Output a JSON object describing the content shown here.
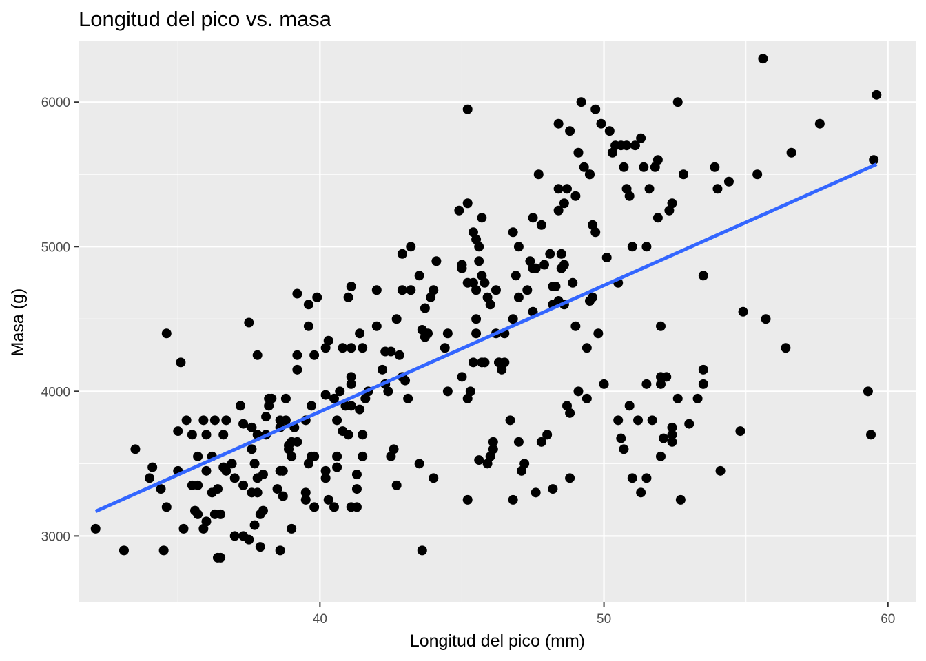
{
  "chart_data": {
    "type": "scatter",
    "title": "Longitud del pico vs. masa",
    "xlabel": "Longitud del pico (mm)",
    "ylabel": "Masa (g)",
    "xlim": [
      31.5,
      61.0
    ],
    "ylim": [
      2540,
      6420
    ],
    "x_ticks": [
      40,
      50,
      60
    ],
    "x_tick_labels": [
      "40",
      "50",
      "60"
    ],
    "x_minor": [
      35,
      45,
      55
    ],
    "y_ticks": [
      3000,
      4000,
      5000,
      6000
    ],
    "y_tick_labels": [
      "3000",
      "4000",
      "5000",
      "6000"
    ],
    "y_minor": [
      3500,
      4500,
      5500
    ],
    "grid": true,
    "legend": "none",
    "point_color": "#000000",
    "fit_color": "#3366ff",
    "panel_color": "#ebebeb",
    "fit_line": {
      "method": "lm",
      "x": [
        32.1,
        59.6
      ],
      "y": [
        3170,
        5570
      ]
    },
    "points": [
      [
        32.1,
        3050
      ],
      [
        33.1,
        2900
      ],
      [
        33.5,
        3600
      ],
      [
        34.0,
        3400
      ],
      [
        34.1,
        3475
      ],
      [
        34.4,
        3325
      ],
      [
        34.5,
        2900
      ],
      [
        34.6,
        3200
      ],
      [
        34.6,
        4400
      ],
      [
        35.0,
        3450
      ],
      [
        35.0,
        3725
      ],
      [
        35.1,
        4200
      ],
      [
        35.2,
        3050
      ],
      [
        35.3,
        3800
      ],
      [
        35.5,
        3700
      ],
      [
        35.5,
        3350
      ],
      [
        35.6,
        3175
      ],
      [
        35.7,
        3550
      ],
      [
        35.7,
        3150
      ],
      [
        35.7,
        3350
      ],
      [
        35.9,
        3050
      ],
      [
        35.9,
        3800
      ],
      [
        36.0,
        3100
      ],
      [
        36.0,
        3700
      ],
      [
        36.0,
        3450
      ],
      [
        36.2,
        3550
      ],
      [
        36.2,
        3300
      ],
      [
        36.3,
        3800
      ],
      [
        36.3,
        3150
      ],
      [
        36.4,
        2850
      ],
      [
        36.4,
        3325
      ],
      [
        36.5,
        2850
      ],
      [
        36.5,
        3150
      ],
      [
        36.6,
        3700
      ],
      [
        36.6,
        3475
      ],
      [
        36.7,
        3800
      ],
      [
        36.7,
        3450
      ],
      [
        36.9,
        3500
      ],
      [
        37.0,
        3000
      ],
      [
        37.0,
        3400
      ],
      [
        37.2,
        3900
      ],
      [
        37.3,
        3775
      ],
      [
        37.3,
        3350
      ],
      [
        37.3,
        3000
      ],
      [
        37.5,
        2975
      ],
      [
        37.5,
        4475
      ],
      [
        37.6,
        3300
      ],
      [
        37.6,
        3600
      ],
      [
        37.6,
        3750
      ],
      [
        37.7,
        3075
      ],
      [
        37.7,
        3500
      ],
      [
        37.8,
        3700
      ],
      [
        37.8,
        3300
      ],
      [
        37.8,
        4250
      ],
      [
        37.8,
        3400
      ],
      [
        37.9,
        3150
      ],
      [
        37.9,
        2925
      ],
      [
        38.0,
        3175
      ],
      [
        38.0,
        3425
      ],
      [
        38.1,
        3825
      ],
      [
        38.1,
        3700
      ],
      [
        38.2,
        3950
      ],
      [
        38.2,
        3900
      ],
      [
        38.3,
        3950
      ],
      [
        38.5,
        3325
      ],
      [
        38.6,
        3450
      ],
      [
        38.6,
        3750
      ],
      [
        38.6,
        3800
      ],
      [
        38.6,
        2900
      ],
      [
        38.7,
        3450
      ],
      [
        38.7,
        3275
      ],
      [
        38.8,
        3800
      ],
      [
        38.8,
        3950
      ],
      [
        38.9,
        3625
      ],
      [
        38.9,
        3600
      ],
      [
        39.0,
        3050
      ],
      [
        39.0,
        3550
      ],
      [
        39.0,
        3650
      ],
      [
        39.1,
        3750
      ],
      [
        39.2,
        4675
      ],
      [
        39.2,
        3650
      ],
      [
        39.2,
        4250
      ],
      [
        39.2,
        4150
      ],
      [
        39.5,
        3800
      ],
      [
        39.5,
        3300
      ],
      [
        39.5,
        3250
      ],
      [
        39.6,
        3500
      ],
      [
        39.6,
        4600
      ],
      [
        39.6,
        4450
      ],
      [
        39.7,
        3900
      ],
      [
        39.7,
        3550
      ],
      [
        39.8,
        4250
      ],
      [
        39.8,
        3550
      ],
      [
        39.8,
        3200
      ],
      [
        39.9,
        4650
      ],
      [
        40.2,
        4300
      ],
      [
        40.2,
        3975
      ],
      [
        40.2,
        3450
      ],
      [
        40.2,
        3400
      ],
      [
        40.3,
        3250
      ],
      [
        40.3,
        4350
      ],
      [
        40.5,
        3950
      ],
      [
        40.5,
        3200
      ],
      [
        40.6,
        3550
      ],
      [
        40.6,
        3475
      ],
      [
        40.6,
        3800
      ],
      [
        40.7,
        4000
      ],
      [
        40.8,
        3725
      ],
      [
        40.8,
        4300
      ],
      [
        40.9,
        3900
      ],
      [
        41.0,
        4650
      ],
      [
        41.0,
        3700
      ],
      [
        41.1,
        3200
      ],
      [
        41.1,
        4725
      ],
      [
        41.1,
        4300
      ],
      [
        41.1,
        3900
      ],
      [
        41.3,
        3425
      ],
      [
        41.1,
        4050
      ],
      [
        41.3,
        3325
      ],
      [
        41.3,
        3200
      ],
      [
        41.1,
        4100
      ],
      [
        41.4,
        3875
      ],
      [
        41.4,
        4400
      ],
      [
        41.5,
        3550
      ],
      [
        41.5,
        3700
      ],
      [
        41.6,
        3950
      ],
      [
        41.5,
        4300
      ],
      [
        41.7,
        4000
      ],
      [
        42.0,
        4700
      ],
      [
        42.0,
        4450
      ],
      [
        42.2,
        4150
      ],
      [
        42.3,
        4275
      ],
      [
        42.4,
        4000
      ],
      [
        42.5,
        3550
      ],
      [
        42.3,
        4050
      ],
      [
        42.5,
        4275
      ],
      [
        42.6,
        3600
      ],
      [
        42.7,
        3350
      ],
      [
        42.7,
        4500
      ],
      [
        42.8,
        4250
      ],
      [
        42.9,
        4100
      ],
      [
        42.9,
        4950
      ],
      [
        42.9,
        4700
      ],
      [
        43.0,
        4075
      ],
      [
        43.1,
        3950
      ],
      [
        43.2,
        4700
      ],
      [
        43.2,
        5000
      ],
      [
        43.5,
        4800
      ],
      [
        43.5,
        3500
      ],
      [
        43.6,
        2900
      ],
      [
        43.6,
        4425
      ],
      [
        43.7,
        4375
      ],
      [
        43.7,
        4575
      ],
      [
        43.8,
        4400
      ],
      [
        43.9,
        4650
      ],
      [
        44.0,
        4700
      ],
      [
        44.0,
        3400
      ],
      [
        44.1,
        4900
      ],
      [
        44.4,
        4300
      ],
      [
        44.5,
        4000
      ],
      [
        44.5,
        4400
      ],
      [
        44.9,
        5250
      ],
      [
        45.0,
        4100
      ],
      [
        45.0,
        4850
      ],
      [
        45.0,
        4875
      ],
      [
        45.4,
        5100
      ],
      [
        45.4,
        4750
      ],
      [
        45.5,
        5050
      ],
      [
        45.5,
        4400
      ],
      [
        45.6,
        5000
      ],
      [
        45.6,
        4900
      ],
      [
        45.7,
        5200
      ],
      [
        45.2,
        5300
      ],
      [
        45.2,
        4750
      ],
      [
        45.2,
        5950
      ],
      [
        45.2,
        3950
      ],
      [
        45.2,
        3250
      ],
      [
        45.3,
        4000
      ],
      [
        45.4,
        4200
      ],
      [
        45.5,
        4700
      ],
      [
        45.5,
        4500
      ],
      [
        45.7,
        4800
      ],
      [
        45.7,
        4200
      ],
      [
        45.6,
        3525
      ],
      [
        45.8,
        4750
      ],
      [
        45.8,
        4200
      ],
      [
        45.9,
        4650
      ],
      [
        45.9,
        3500
      ],
      [
        46.0,
        4600
      ],
      [
        46.0,
        3550
      ],
      [
        46.1,
        3650
      ],
      [
        46.1,
        3600
      ],
      [
        46.2,
        4700
      ],
      [
        46.2,
        4400
      ],
      [
        46.3,
        4200
      ],
      [
        46.3,
        4200
      ],
      [
        46.4,
        4150
      ],
      [
        46.5,
        4400
      ],
      [
        46.5,
        4200
      ],
      [
        46.7,
        3800
      ],
      [
        46.8,
        5100
      ],
      [
        46.8,
        4500
      ],
      [
        46.8,
        3250
      ],
      [
        46.9,
        4800
      ],
      [
        47.0,
        4650
      ],
      [
        47.0,
        5000
      ],
      [
        47.0,
        3650
      ],
      [
        47.1,
        3450
      ],
      [
        47.2,
        3500
      ],
      [
        47.3,
        4700
      ],
      [
        47.4,
        4900
      ],
      [
        47.5,
        4850
      ],
      [
        47.5,
        5200
      ],
      [
        47.5,
        4550
      ],
      [
        47.6,
        3300
      ],
      [
        47.6,
        4850
      ],
      [
        47.7,
        5500
      ],
      [
        47.8,
        5150
      ],
      [
        47.8,
        3650
      ],
      [
        47.9,
        4875
      ],
      [
        48.0,
        3700
      ],
      [
        48.1,
        4950
      ],
      [
        48.2,
        4725
      ],
      [
        48.3,
        4725
      ],
      [
        48.4,
        5250
      ],
      [
        48.5,
        4950
      ],
      [
        48.6,
        4600
      ],
      [
        48.6,
        4875
      ],
      [
        48.7,
        5400
      ],
      [
        48.7,
        3900
      ],
      [
        48.8,
        3850
      ],
      [
        48.9,
        4750
      ],
      [
        49.1,
        5650
      ],
      [
        49.5,
        5500
      ],
      [
        49.7,
        5100
      ],
      [
        49.5,
        4625
      ],
      [
        48.2,
        4600
      ],
      [
        48.4,
        4625
      ],
      [
        48.5,
        4850
      ],
      [
        48.6,
        5300
      ],
      [
        48.8,
        5800
      ],
      [
        48.8,
        3400
      ],
      [
        48.2,
        3325
      ],
      [
        48.4,
        5850
      ],
      [
        48.4,
        5400
      ],
      [
        49.0,
        5350
      ],
      [
        49.0,
        4450
      ],
      [
        49.1,
        4000
      ],
      [
        49.2,
        6000
      ],
      [
        49.3,
        5550
      ],
      [
        49.4,
        4300
      ],
      [
        49.4,
        3950
      ],
      [
        49.5,
        5500
      ],
      [
        49.6,
        5150
      ],
      [
        49.6,
        4650
      ],
      [
        49.7,
        5950
      ],
      [
        49.8,
        4400
      ],
      [
        49.9,
        5850
      ],
      [
        50.0,
        4050
      ],
      [
        50.1,
        4925
      ],
      [
        50.2,
        5800
      ],
      [
        50.3,
        5650
      ],
      [
        50.4,
        5700
      ],
      [
        50.5,
        4750
      ],
      [
        50.5,
        3800
      ],
      [
        50.6,
        5700
      ],
      [
        50.6,
        3675
      ],
      [
        50.7,
        3600
      ],
      [
        50.7,
        5550
      ],
      [
        50.8,
        5700
      ],
      [
        50.8,
        5400
      ],
      [
        50.9,
        3900
      ],
      [
        50.9,
        5350
      ],
      [
        51.0,
        5000
      ],
      [
        51.0,
        3400
      ],
      [
        51.1,
        5700
      ],
      [
        51.2,
        3800
      ],
      [
        51.3,
        3300
      ],
      [
        51.3,
        5750
      ],
      [
        51.4,
        5550
      ],
      [
        51.5,
        3400
      ],
      [
        51.5,
        5000
      ],
      [
        51.5,
        4050
      ],
      [
        51.6,
        5400
      ],
      [
        51.7,
        3800
      ],
      [
        51.8,
        5550
      ],
      [
        51.9,
        5200
      ],
      [
        51.9,
        5600
      ],
      [
        52.0,
        4050
      ],
      [
        52.0,
        4100
      ],
      [
        52.0,
        3550
      ],
      [
        52.0,
        4450
      ],
      [
        52.1,
        3675
      ],
      [
        52.2,
        4100
      ],
      [
        52.3,
        5250
      ],
      [
        52.4,
        5300
      ],
      [
        52.4,
        3700
      ],
      [
        52.4,
        3750
      ],
      [
        52.4,
        3650
      ],
      [
        52.6,
        6000
      ],
      [
        52.6,
        3950
      ],
      [
        52.7,
        3250
      ],
      [
        52.8,
        5500
      ],
      [
        53.0,
        3775
      ],
      [
        53.3,
        3950
      ],
      [
        53.5,
        4800
      ],
      [
        53.5,
        4150
      ],
      [
        53.5,
        4050
      ],
      [
        53.9,
        5550
      ],
      [
        54.0,
        5400
      ],
      [
        54.1,
        3450
      ],
      [
        54.4,
        5450
      ],
      [
        54.8,
        3725
      ],
      [
        54.9,
        4550
      ],
      [
        55.4,
        5500
      ],
      [
        55.7,
        4500
      ],
      [
        56.4,
        4300
      ],
      [
        56.6,
        5650
      ],
      [
        57.6,
        5850
      ],
      [
        59.3,
        4000
      ],
      [
        59.5,
        5600
      ],
      [
        59.4,
        3700
      ],
      [
        59.6,
        6050
      ],
      [
        55.6,
        6300
      ]
    ]
  }
}
